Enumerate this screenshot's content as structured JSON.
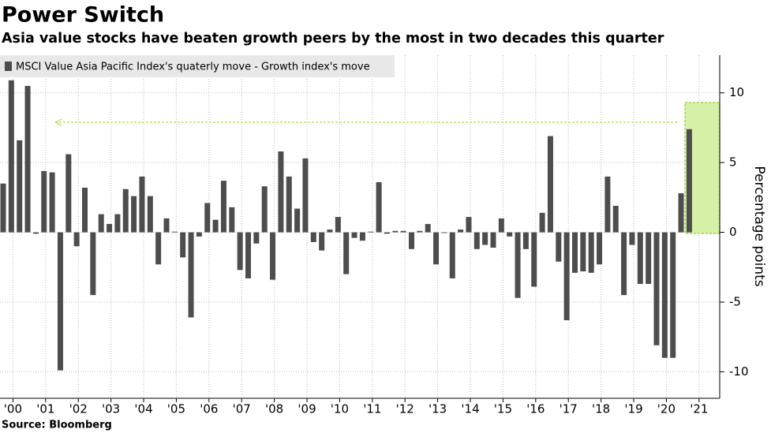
{
  "chart_data": {
    "type": "bar",
    "title": "Power Switch",
    "subtitle": "Asia value stocks have beaten growth peers by the most in two decades this quarter",
    "source": "Source: Bloomberg",
    "y_axis_label": "Percentage points",
    "categories": [
      "'00",
      null,
      null,
      null,
      "'01",
      null,
      null,
      null,
      "'02",
      null,
      null,
      null,
      "'03",
      null,
      null,
      null,
      "'04",
      null,
      null,
      null,
      "'05",
      null,
      null,
      null,
      "'06",
      null,
      null,
      null,
      "'07",
      null,
      null,
      null,
      "'08",
      null,
      null,
      null,
      "'09",
      null,
      null,
      null,
      "'10",
      null,
      null,
      null,
      "'11",
      null,
      null,
      null,
      "'12",
      null,
      null,
      null,
      "'13",
      null,
      null,
      null,
      "'14",
      null,
      null,
      null,
      "'15",
      null,
      null,
      null,
      "'16",
      null,
      null,
      null,
      "'17",
      null,
      null,
      null,
      "'18",
      null,
      null,
      null,
      "'19",
      null,
      null,
      null,
      "'20",
      null,
      null,
      null,
      "'21"
    ],
    "series": [
      {
        "name": "MSCI Value Asia Pacific Index's quaterly move - Growth index's move",
        "color": "#4d4d4d",
        "values": [
          3.5,
          10.9,
          6.6,
          10.5,
          -0.1,
          4.4,
          4.3,
          -9.9,
          5.6,
          -1.0,
          3.2,
          -4.5,
          1.3,
          0.6,
          1.3,
          3.1,
          2.6,
          4.0,
          2.6,
          -2.3,
          1.0,
          0.05,
          -1.8,
          -6.1,
          -0.3,
          2.1,
          0.9,
          3.7,
          1.8,
          -2.7,
          -3.3,
          -0.8,
          3.3,
          -3.4,
          5.8,
          4.0,
          1.7,
          5.3,
          -0.7,
          -1.3,
          0.2,
          1.1,
          -3.0,
          -0.4,
          -0.6,
          0.05,
          3.6,
          -0.1,
          0.1,
          0.1,
          -1.2,
          0.1,
          0.6,
          -2.3,
          -0.05,
          -3.3,
          0.2,
          1.1,
          -1.2,
          -0.9,
          -1.1,
          1.0,
          -0.3,
          -4.7,
          -1.2,
          -3.9,
          1.4,
          6.9,
          -2.1,
          -6.3,
          -2.9,
          -2.8,
          -2.9,
          -2.3,
          4.0,
          1.9,
          -4.5,
          -0.9,
          -3.7,
          -3.7,
          -8.1,
          -9.0,
          -9.0,
          2.8,
          7.4
        ]
      }
    ],
    "ylim": [
      -11.9,
      12.7
    ],
    "yticks": [
      -10,
      -5,
      0,
      5,
      10
    ],
    "grid": true
  }
}
